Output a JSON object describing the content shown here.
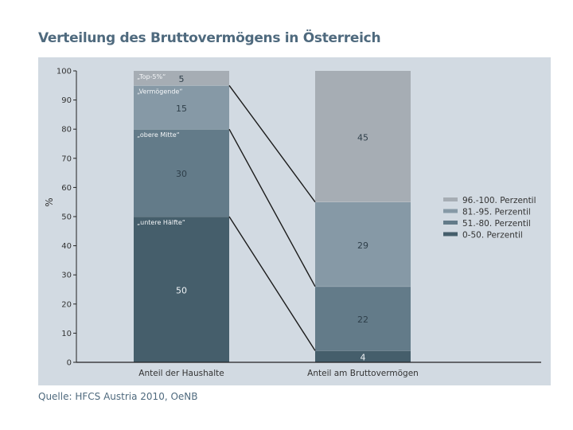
{
  "title": "Verteilung des Bruttovermögens in Österreich",
  "source": "Quelle: HFCS Austria 2010, OeNB",
  "colors": {
    "panel_bg": "#d2dae2",
    "top": "#a6adb4",
    "upper": "#8699a6",
    "middle": "#637b89",
    "lower": "#455e6b",
    "axis": "#222222",
    "text": "#333333",
    "title": "#4f6a7e"
  },
  "chart_data": {
    "type": "bar",
    "stacked": true,
    "categories": [
      "Anteil der Haushalte",
      "Anteil am Bruttovermögen"
    ],
    "ylabel": "%",
    "ylim": [
      0,
      100
    ],
    "yticks": [
      0,
      10,
      20,
      30,
      40,
      50,
      60,
      70,
      80,
      90,
      100
    ],
    "series": [
      {
        "name": "0-50. Perzentil",
        "values": [
          50,
          4
        ],
        "color": "#455e6b",
        "group_label": "„untere Hälfte“"
      },
      {
        "name": "51.-80. Perzentil",
        "values": [
          30,
          22
        ],
        "color": "#637b89",
        "group_label": "„obere Mitte“"
      },
      {
        "name": "81.-95. Perzentil",
        "values": [
          15,
          29
        ],
        "color": "#8699a6",
        "group_label": "„Vermögende“"
      },
      {
        "name": "96.-100. Perzentil",
        "values": [
          5,
          45
        ],
        "color": "#a6adb4",
        "group_label": "„Top-5%“"
      }
    ],
    "legend_order": [
      3,
      2,
      1,
      0
    ],
    "legend_position": "right",
    "grid": false
  }
}
